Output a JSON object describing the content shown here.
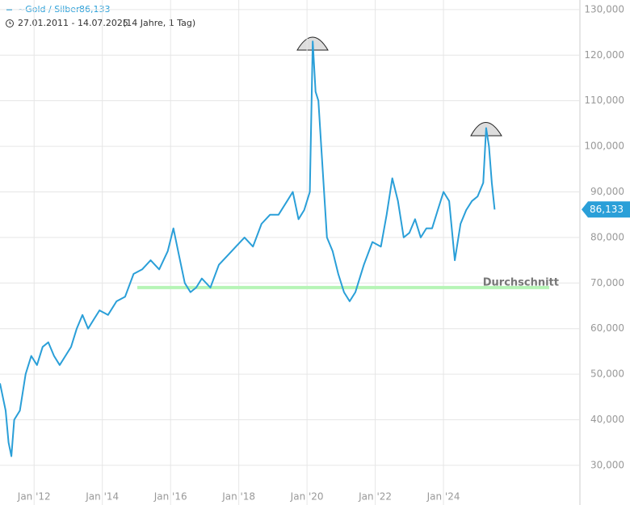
{
  "chart_data": {
    "type": "line",
    "title": "~Gold / Silber",
    "header_value": "86,133",
    "subtitle": "27.01.2011 - 14.07.2025",
    "subtitle_note": "(14 Jahre, 1 Tag)",
    "x": [
      "2011-01",
      "2011-03",
      "2011-04",
      "2011-05",
      "2011-06",
      "2011-08",
      "2011-10",
      "2011-12",
      "2012-02",
      "2012-04",
      "2012-06",
      "2012-08",
      "2012-10",
      "2012-12",
      "2013-02",
      "2013-04",
      "2013-06",
      "2013-08",
      "2013-10",
      "2013-12",
      "2014-03",
      "2014-06",
      "2014-09",
      "2014-12",
      "2015-03",
      "2015-06",
      "2015-09",
      "2015-12",
      "2016-02",
      "2016-04",
      "2016-06",
      "2016-08",
      "2016-10",
      "2016-12",
      "2017-03",
      "2017-06",
      "2017-09",
      "2017-12",
      "2018-03",
      "2018-06",
      "2018-09",
      "2018-12",
      "2019-03",
      "2019-06",
      "2019-08",
      "2019-10",
      "2019-12",
      "2020-02",
      "2020-03",
      "2020-04",
      "2020-05",
      "2020-06",
      "2020-08",
      "2020-10",
      "2020-12",
      "2021-02",
      "2021-04",
      "2021-06",
      "2021-09",
      "2021-12",
      "2022-03",
      "2022-05",
      "2022-07",
      "2022-09",
      "2022-11",
      "2023-01",
      "2023-03",
      "2023-05",
      "2023-07",
      "2023-09",
      "2023-11",
      "2024-01",
      "2024-03",
      "2024-05",
      "2024-07",
      "2024-09",
      "2024-11",
      "2025-01",
      "2025-03",
      "2025-04",
      "2025-05",
      "2025-06",
      "2025-07"
    ],
    "series": [
      {
        "name": "~Gold / Silber",
        "color": "#2a9fd8",
        "values": [
          48000,
          42000,
          35000,
          32000,
          40000,
          42000,
          50000,
          54000,
          52000,
          56000,
          57000,
          54000,
          52000,
          54000,
          56000,
          60000,
          63000,
          60000,
          62000,
          64000,
          63000,
          66000,
          67000,
          72000,
          73000,
          75000,
          73000,
          77000,
          82000,
          76000,
          70000,
          68000,
          69000,
          71000,
          69000,
          74000,
          76000,
          78000,
          80000,
          78000,
          83000,
          85000,
          85000,
          88000,
          90000,
          84000,
          86000,
          90000,
          123000,
          112000,
          110000,
          100000,
          80000,
          77000,
          72000,
          68000,
          66000,
          68000,
          74000,
          79000,
          78000,
          85000,
          93000,
          88000,
          80000,
          81000,
          84000,
          80000,
          82000,
          82000,
          86000,
          90000,
          88000,
          75000,
          83000,
          86000,
          88000,
          89000,
          92000,
          104000,
          100000,
          92000,
          86133
        ]
      }
    ],
    "last_value": 86133,
    "last_value_label": "86,133",
    "average_line": {
      "label": "Durchschnitt",
      "value": 69000
    },
    "xlim": [
      "2011-01",
      "2028-01"
    ],
    "xticks": [
      {
        "value": "2012-01",
        "label": "Jan '12"
      },
      {
        "value": "2014-01",
        "label": "Jan '14"
      },
      {
        "value": "2016-01",
        "label": "Jan '16"
      },
      {
        "value": "2018-01",
        "label": "Jan '18"
      },
      {
        "value": "2020-01",
        "label": "Jan '20"
      },
      {
        "value": "2022-01",
        "label": "Jan '22"
      },
      {
        "value": "2024-01",
        "label": "Jan '24"
      }
    ],
    "ylim": [
      21300,
      132100
    ],
    "yticks": [
      {
        "value": 30000,
        "label": "30,000"
      },
      {
        "value": 40000,
        "label": "40,000"
      },
      {
        "value": 50000,
        "label": "50,000"
      },
      {
        "value": 60000,
        "label": "60,000"
      },
      {
        "value": 70000,
        "label": "70,000"
      },
      {
        "value": 80000,
        "label": "80,000"
      },
      {
        "value": 90000,
        "label": "90,000"
      },
      {
        "value": 100000,
        "label": "100,000"
      },
      {
        "value": 110000,
        "label": "110,000"
      },
      {
        "value": 120000,
        "label": "120,000"
      },
      {
        "value": 130000,
        "label": "130,000"
      }
    ],
    "grid": true
  }
}
